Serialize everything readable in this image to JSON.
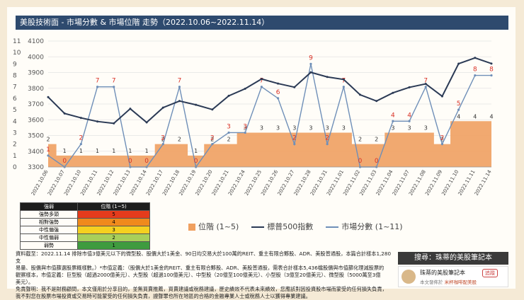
{
  "title": "美股技術面 - 市場分數 & 市場位階 走勢（2022.10.06~2022.11.14）",
  "colors": {
    "area": "#f0a060",
    "sp500": "#2b3a55",
    "score": "#6f8fb8",
    "label_red": "#d93025",
    "title_bg": "#2e4a6e"
  },
  "chart_data": {
    "type": "line",
    "categories": [
      "2022.10.06",
      "2022.10.07",
      "2022.10.10",
      "2022.10.11",
      "2022.10.12",
      "2022.10.13",
      "2022.10.14",
      "2022.10.17",
      "2022.10.18",
      "2022.10.19",
      "2022.10.20",
      "2022.10.21",
      "2022.10.24",
      "2022.10.25",
      "2022.10.26",
      "2022.10.27",
      "2022.10.28",
      "2022.10.31",
      "2022.11.01",
      "2022.11.02",
      "2022.11.03",
      "2022.11.04",
      "2022.11.07",
      "2022.11.08",
      "2022.11.09",
      "2022.11.10",
      "2022.11.11",
      "2022.11.14"
    ],
    "left_axis": {
      "ylim": [
        3300,
        4100
      ],
      "ticks": [
        3300,
        3400,
        3500,
        3600,
        3700,
        3800,
        3900,
        4000,
        4100
      ]
    },
    "right_axis": {
      "ylim": [
        0,
        11
      ],
      "ticks": [
        0,
        1,
        2,
        3,
        4,
        5,
        6,
        7,
        8,
        9,
        10,
        11
      ]
    },
    "series": [
      {
        "name": "位階 (1~5)",
        "axis": "right",
        "kind": "area",
        "values": [
          2,
          1,
          1,
          1,
          1,
          1,
          1,
          2,
          2,
          1,
          2,
          2,
          3,
          3,
          3,
          3,
          3,
          3,
          3,
          2,
          2,
          3,
          3,
          3,
          2,
          4,
          4,
          4
        ]
      },
      {
        "name": "標普500指數",
        "axis": "left",
        "kind": "line",
        "values": [
          3744,
          3640,
          3612,
          3589,
          3577,
          3670,
          3583,
          3677,
          3719,
          3695,
          3665,
          3752,
          3797,
          3859,
          3830,
          3807,
          3901,
          3872,
          3856,
          3759,
          3719,
          3771,
          3806,
          3828,
          3749,
          3956,
          3993,
          3957
        ]
      },
      {
        "name": "市場分數 (1~11)",
        "axis": "right",
        "kind": "line",
        "values": [
          1,
          0,
          2,
          7,
          7,
          0,
          0,
          2,
          7,
          0,
          2,
          3,
          3,
          7,
          6,
          2,
          9,
          2,
          7,
          0,
          0,
          4,
          4,
          7,
          2,
          5,
          8,
          8
        ]
      }
    ]
  },
  "legend_table": {
    "headers": [
      "強弱",
      "位階 (1~5)"
    ],
    "rows": [
      {
        "label": "強勢多頭",
        "value": "5",
        "color": "#e53b1c"
      },
      {
        "label": "相對強勢",
        "value": "4",
        "color": "#f08a1c"
      },
      {
        "label": "中性偏強",
        "value": "3",
        "color": "#f5d020"
      },
      {
        "label": "中性偏弱",
        "value": "2",
        "color": "#a8cf5a"
      },
      {
        "label": "弱勢",
        "value": "1",
        "color": "#3f9b3f"
      }
    ]
  },
  "series_legend": [
    "位階 (1~5)",
    "標普500指數",
    "市場分數 (1~11)"
  ],
  "footer": {
    "line1": "資料截至：2022.11.14 排除市值3億美元以下的微型股、股價大於1美金、90日均交易大於100萬的REIT、重主有限合夥股、ADR、美股普通股，本篇合計樣本1,280支",
    "line2": "易量、股價與市值篩選股票概樣數。）*市值定義：（股價大於1美金的REIT、重主有限合夥股、ADR、美股普通股，需表合計樣本5,436檔股價與市值篩化理減股票的",
    "line3": "觀察樣本，市值定義：巨型股（超過2000億美元）、大型股（超過100億美元）、中型股（20億至100億美元）、小型股（3億至20億美元）、微型股（5000萬至3億",
    "line4": "美元）。",
    "line5": "免責聲明：我不是財務顧問，本文僅用於分享目的，並無買賣推薦，買賣建議或稅務建議，歷史績效不代表未來績效，您應該對因投資股市場而蒙受的任何損失負責，",
    "line6": "我不對您在股票市場投資或交易時可能蒙受的任何損失負責，證聲罪也所在地區的合格的金融專業人士或稅務人士以獲得專業建議。"
  },
  "sidebar": {
    "search_label": "搜尋：珠蒂的美股筆記本",
    "profile_name": "珠蒂的美股筆記本",
    "follow_label": "追蹤",
    "profile_line_prefix": "本文發佈於",
    "profile_line_link": "米杯咖啡配美股"
  }
}
